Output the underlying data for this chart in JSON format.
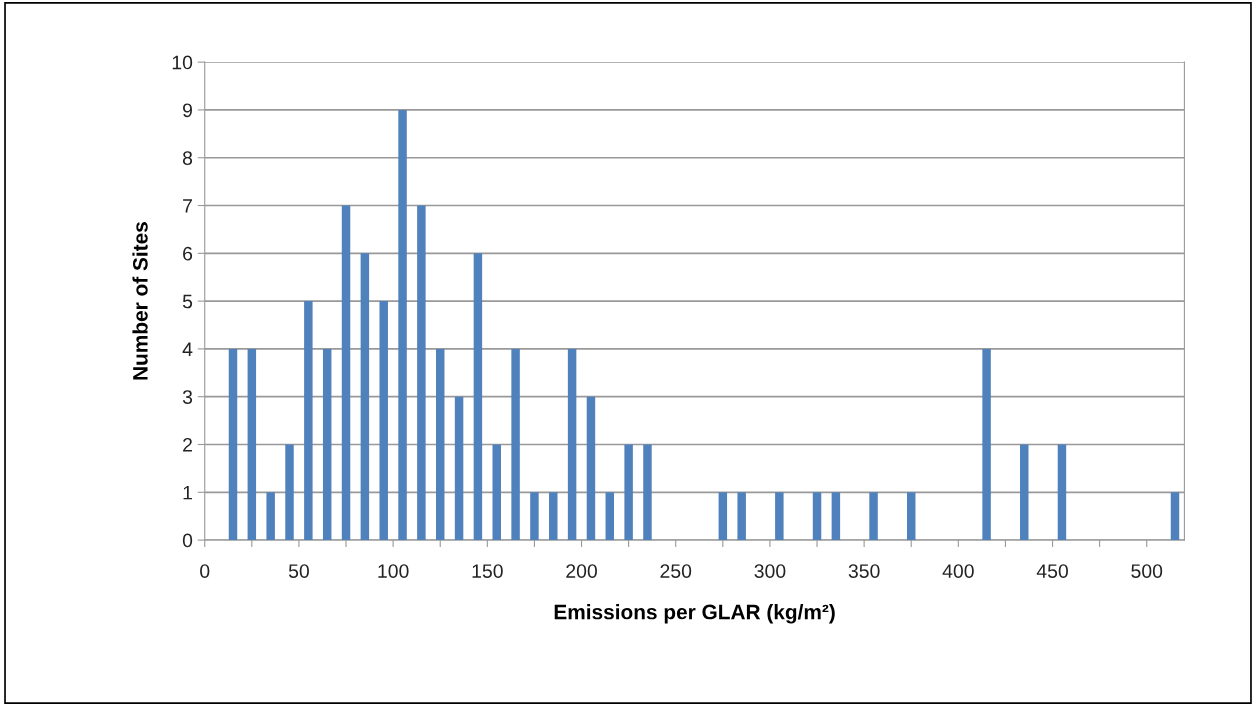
{
  "chart_data": {
    "type": "bar",
    "xlabel": "Emissions per GLAR (kg/m²)",
    "ylabel": "Number of Sites",
    "x": [
      15,
      25,
      35,
      45,
      55,
      65,
      75,
      85,
      95,
      105,
      115,
      125,
      135,
      145,
      155,
      165,
      175,
      185,
      195,
      205,
      215,
      225,
      235,
      275,
      285,
      305,
      325,
      335,
      355,
      375,
      415,
      435,
      455,
      515
    ],
    "values": [
      4,
      4,
      1,
      2,
      5,
      4,
      7,
      6,
      5,
      9,
      7,
      4,
      3,
      6,
      2,
      4,
      1,
      1,
      4,
      3,
      1,
      2,
      2,
      1,
      1,
      1,
      1,
      1,
      1,
      1,
      4,
      2,
      2,
      1
    ],
    "color": "#4f81bd",
    "xlim": [
      0,
      520
    ],
    "xticks": [
      0,
      {
        "value": 25,
        "label": null
      },
      50,
      {
        "value": 75,
        "label": null
      },
      100,
      {
        "value": 125,
        "label": null
      },
      150,
      {
        "value": 175,
        "label": null
      },
      200,
      {
        "value": 225,
        "label": null
      },
      250,
      {
        "value": 275,
        "label": null
      },
      300,
      {
        "value": 325,
        "label": null
      },
      350,
      {
        "value": 375,
        "label": null
      },
      400,
      {
        "value": 425,
        "label": null
      },
      450,
      {
        "value": 475,
        "label": null
      },
      500
    ],
    "ylim": [
      0,
      10
    ],
    "yticks": [
      0,
      1,
      2,
      3,
      4,
      5,
      6,
      7,
      8,
      9,
      10
    ],
    "grid": "y"
  }
}
